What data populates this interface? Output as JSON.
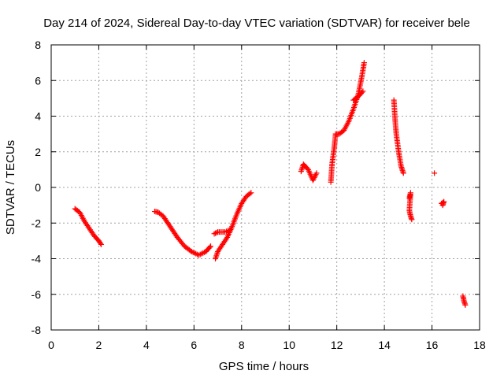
{
  "chart_data": {
    "type": "scatter",
    "title": "Day 214 of 2024, Sidereal Day-to-day VTEC variation (SDTVAR) for receiver bele",
    "xlabel": "GPS time / hours",
    "ylabel": "SDTVAR / TECUs",
    "xlim": [
      0,
      18
    ],
    "ylim": [
      -8,
      8
    ],
    "xticks": [
      "0",
      "2",
      "4",
      "6",
      "8",
      "10",
      "12",
      "14",
      "16",
      "18"
    ],
    "yticks": [
      "-8",
      "-6",
      "-4",
      "-2",
      "0",
      "2",
      "4",
      "6",
      "8"
    ],
    "grid": true,
    "marker": "+",
    "color": "#ff0000",
    "series": [
      {
        "name": "SDTVAR",
        "segments": [
          [
            [
              1.0,
              -1.2
            ],
            [
              1.2,
              -1.4
            ],
            [
              1.4,
              -1.9
            ],
            [
              1.6,
              -2.3
            ],
            [
              1.8,
              -2.7
            ],
            [
              2.0,
              -3.0
            ],
            [
              2.1,
              -3.2
            ]
          ],
          [
            [
              4.35,
              -1.35
            ],
            [
              4.5,
              -1.4
            ],
            [
              4.7,
              -1.6
            ],
            [
              5.0,
              -2.2
            ],
            [
              5.3,
              -2.8
            ],
            [
              5.6,
              -3.3
            ],
            [
              5.9,
              -3.6
            ],
            [
              6.2,
              -3.8
            ],
            [
              6.5,
              -3.6
            ],
            [
              6.7,
              -3.3
            ]
          ],
          [
            [
              6.9,
              -4.0
            ],
            [
              7.0,
              -3.6
            ],
            [
              7.2,
              -3.2
            ],
            [
              7.4,
              -2.8
            ],
            [
              7.6,
              -2.2
            ],
            [
              7.8,
              -1.5
            ],
            [
              8.0,
              -0.9
            ],
            [
              8.2,
              -0.5
            ],
            [
              8.4,
              -0.3
            ]
          ],
          [
            [
              6.85,
              -2.6
            ],
            [
              7.0,
              -2.5
            ],
            [
              7.3,
              -2.5
            ],
            [
              7.5,
              -2.4
            ]
          ],
          [
            [
              10.5,
              0.9
            ],
            [
              10.6,
              1.3
            ],
            [
              10.8,
              1.0
            ],
            [
              11.0,
              0.4
            ],
            [
              11.15,
              0.8
            ]
          ],
          [
            [
              11.75,
              0.3
            ],
            [
              11.8,
              1.3
            ],
            [
              11.9,
              2.3
            ],
            [
              11.95,
              3.0
            ],
            [
              12.1,
              3.0
            ],
            [
              12.3,
              3.2
            ],
            [
              12.5,
              3.7
            ],
            [
              12.7,
              4.4
            ],
            [
              12.9,
              5.2
            ],
            [
              13.05,
              6.2
            ],
            [
              13.15,
              7.0
            ]
          ],
          [
            [
              12.7,
              4.9
            ],
            [
              12.9,
              5.1
            ],
            [
              13.1,
              5.4
            ]
          ],
          [
            [
              14.4,
              4.9
            ],
            [
              14.45,
              3.8
            ],
            [
              14.5,
              3.0
            ],
            [
              14.6,
              2.0
            ],
            [
              14.7,
              1.2
            ],
            [
              14.8,
              0.8
            ]
          ],
          [
            [
              15.05,
              -0.6
            ],
            [
              15.1,
              -0.3
            ],
            [
              15.05,
              -1.3
            ],
            [
              15.1,
              -1.6
            ],
            [
              15.15,
              -1.8
            ]
          ],
          [
            [
              16.1,
              0.8
            ]
          ],
          [
            [
              16.4,
              -0.9
            ],
            [
              16.5,
              -0.8
            ],
            [
              16.45,
              -1.0
            ]
          ],
          [
            [
              17.3,
              -6.1
            ],
            [
              17.35,
              -6.4
            ],
            [
              17.4,
              -6.6
            ]
          ]
        ]
      }
    ]
  }
}
